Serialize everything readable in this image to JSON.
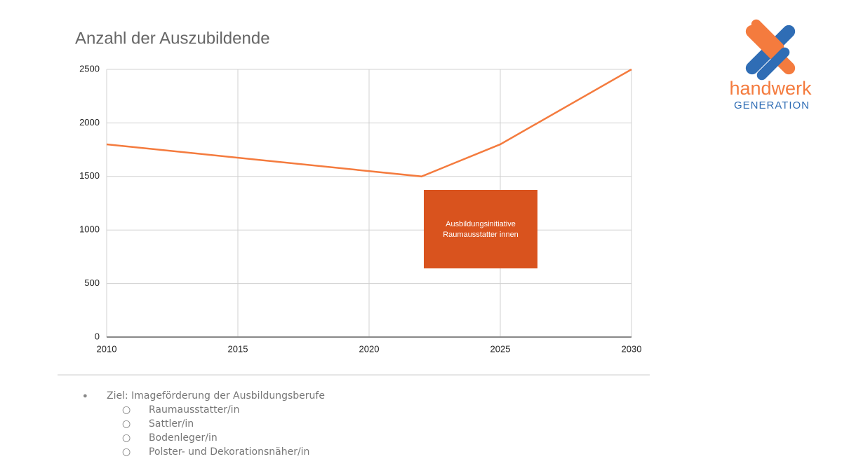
{
  "chart_data": {
    "type": "line",
    "title": "Anzahl der Auszubildende",
    "x": [
      2010,
      2022,
      2025,
      2030
    ],
    "values": [
      1800,
      1500,
      1800,
      2500
    ],
    "color": "#f47b3e",
    "xlim": [
      2010,
      2030
    ],
    "xticks": [
      2010,
      2015,
      2020,
      2025,
      2030
    ],
    "ylim": [
      0,
      2500
    ],
    "yticks": [
      0,
      500,
      1000,
      1500,
      2000,
      2500
    ],
    "grid": true,
    "annotation": [
      "Ausbildungsinitiative",
      "Raumausstatter innen"
    ]
  },
  "logo": {
    "name": "handwerk",
    "tagline": "GENERATION"
  },
  "bullets": {
    "text": "Ziel: Imageförderung der Ausbildungsberufe",
    "items": [
      "Raumausstatter/in",
      "Sattler/in",
      "Bodenleger/in",
      "Polster- und Dekorationsnäher/in"
    ]
  }
}
